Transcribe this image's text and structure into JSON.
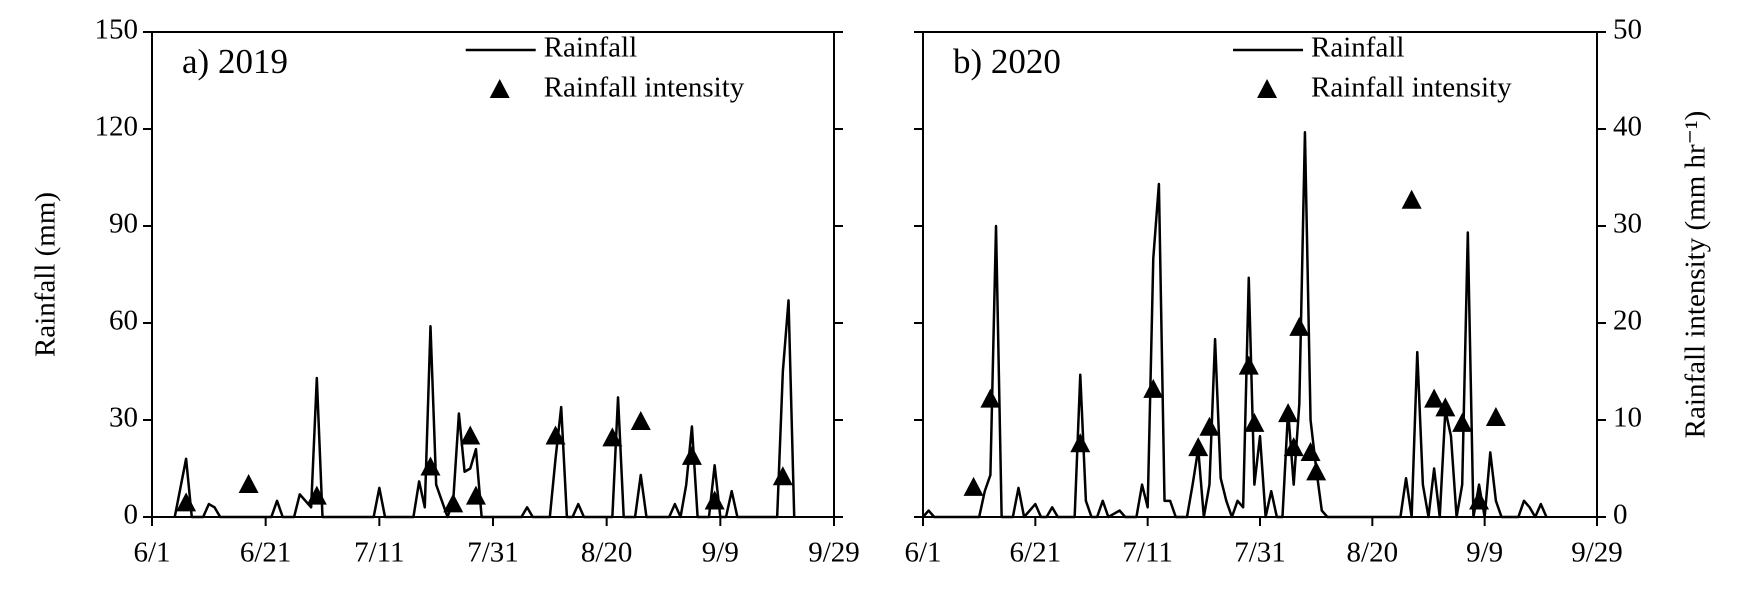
{
  "chart_data": [
    {
      "type": "line",
      "title": "a) 2019",
      "ylabel": "Rainfall (mm)",
      "xlim": [
        0,
        120
      ],
      "xticks": [
        {
          "value": 0,
          "label": "6/1"
        },
        {
          "value": 20,
          "label": "6/21"
        },
        {
          "value": 40,
          "label": "7/11"
        },
        {
          "value": 60,
          "label": "7/31"
        },
        {
          "value": 80,
          "label": "8/20"
        },
        {
          "value": 100,
          "label": "9/9"
        },
        {
          "value": 120,
          "label": "9/29"
        }
      ],
      "ylim": [
        0,
        150
      ],
      "yticks": [
        0,
        30,
        60,
        90,
        120,
        150
      ],
      "y2lim": [
        0,
        50
      ],
      "legend": "upper center",
      "series": [
        {
          "name": "Rainfall",
          "color": "#000000",
          "marker": "none",
          "x": [
            4,
            6,
            7,
            9,
            10,
            11,
            12,
            21,
            22,
            23,
            25,
            26,
            28,
            29,
            30,
            39,
            40,
            41,
            46,
            47,
            48,
            49,
            50,
            52,
            53,
            54,
            55,
            56,
            57,
            58,
            65,
            66,
            67,
            70,
            71,
            72,
            73,
            74,
            75,
            76,
            81,
            82,
            83,
            85,
            86,
            87,
            91,
            92,
            93,
            94,
            95,
            96,
            98,
            99,
            100,
            101,
            102,
            103,
            110,
            111,
            112,
            113
          ],
          "values": [
            0,
            18,
            0,
            0,
            4,
            3,
            0,
            0,
            5,
            0,
            0,
            7,
            3,
            43,
            0,
            0,
            9,
            0,
            0,
            11,
            3,
            59,
            10,
            0,
            5,
            32,
            14,
            15,
            21,
            0,
            0,
            3,
            0,
            0,
            18,
            34,
            0,
            0,
            4,
            0,
            0,
            37,
            0,
            0,
            13,
            0,
            0,
            4,
            0,
            10,
            28,
            0,
            0,
            16,
            0,
            0,
            8,
            0,
            0,
            45,
            67,
            0
          ]
        },
        {
          "name": "Rainfall intensity",
          "color": "#000000",
          "marker": "triangle",
          "axis": "y2",
          "x": [
            6,
            17,
            29,
            49,
            53,
            56,
            57,
            71,
            81,
            86,
            95,
            99,
            111
          ],
          "values": [
            1.4,
            3.3,
            2.1,
            5.1,
            1.3,
            8.3,
            2.1,
            8.3,
            8.1,
            9.8,
            6.2,
            1.6,
            4.1
          ]
        }
      ]
    },
    {
      "type": "line",
      "title": "b) 2020",
      "y2label": "Rainfall intensity (mm hr⁻¹)",
      "xlim": [
        0,
        120
      ],
      "xticks": [
        {
          "value": 0,
          "label": "6/1"
        },
        {
          "value": 20,
          "label": "6/21"
        },
        {
          "value": 40,
          "label": "7/11"
        },
        {
          "value": 60,
          "label": "7/31"
        },
        {
          "value": 80,
          "label": "8/20"
        },
        {
          "value": 100,
          "label": "9/9"
        },
        {
          "value": 120,
          "label": "9/29"
        }
      ],
      "ylim": [
        0,
        150
      ],
      "y2lim": [
        0,
        50
      ],
      "y2ticks": [
        0,
        10,
        20,
        30,
        40,
        50
      ],
      "legend": "upper center",
      "series": [
        {
          "name": "Rainfall",
          "color": "#000000",
          "marker": "none",
          "x": [
            0,
            1,
            2,
            10,
            11,
            12,
            13,
            14,
            16,
            17,
            18,
            20,
            21,
            22,
            23,
            24,
            27,
            28,
            29,
            30,
            31,
            32,
            33,
            35,
            36,
            38,
            39,
            40,
            41,
            42,
            43,
            44,
            45,
            47,
            48,
            49,
            50,
            51,
            52,
            53,
            54,
            55,
            56,
            57,
            58,
            59,
            60,
            61,
            62,
            63,
            64,
            65,
            66,
            67,
            68,
            69,
            70,
            71,
            72,
            85,
            86,
            87,
            88,
            89,
            90,
            91,
            92,
            93,
            94,
            95,
            96,
            97,
            98,
            99,
            100,
            101,
            102,
            103,
            106,
            107,
            108,
            109,
            110,
            111
          ],
          "values": [
            0,
            2,
            0,
            0,
            8,
            13,
            90,
            0,
            0,
            9,
            0,
            4,
            0,
            0,
            3,
            0,
            0,
            44,
            5,
            0,
            0,
            5,
            0,
            2,
            0,
            0,
            10,
            3,
            80,
            103,
            5,
            5,
            0,
            0,
            10,
            21,
            0,
            10,
            55,
            12,
            5,
            0,
            5,
            3,
            74,
            10,
            25,
            0,
            8,
            0,
            0,
            33,
            10,
            35,
            119,
            30,
            15,
            2,
            0,
            0,
            12,
            0,
            51,
            10,
            0,
            15,
            0,
            33,
            25,
            0,
            10,
            88,
            0,
            10,
            0,
            20,
            5,
            0,
            0,
            5,
            3,
            0,
            4,
            0
          ]
        },
        {
          "name": "Rainfall intensity",
          "color": "#000000",
          "marker": "triangle",
          "axis": "y2",
          "x": [
            9,
            12,
            28,
            41,
            49,
            51,
            58,
            59,
            65,
            66,
            67,
            69,
            70,
            87,
            91,
            93,
            96,
            99,
            102
          ],
          "values": [
            3.0,
            12.1,
            7.5,
            13.1,
            7.1,
            9.2,
            15.5,
            9.6,
            10.6,
            7.1,
            19.5,
            6.6,
            4.6,
            32.6,
            12.1,
            11.2,
            9.6,
            1.6,
            10.2
          ]
        }
      ]
    }
  ]
}
